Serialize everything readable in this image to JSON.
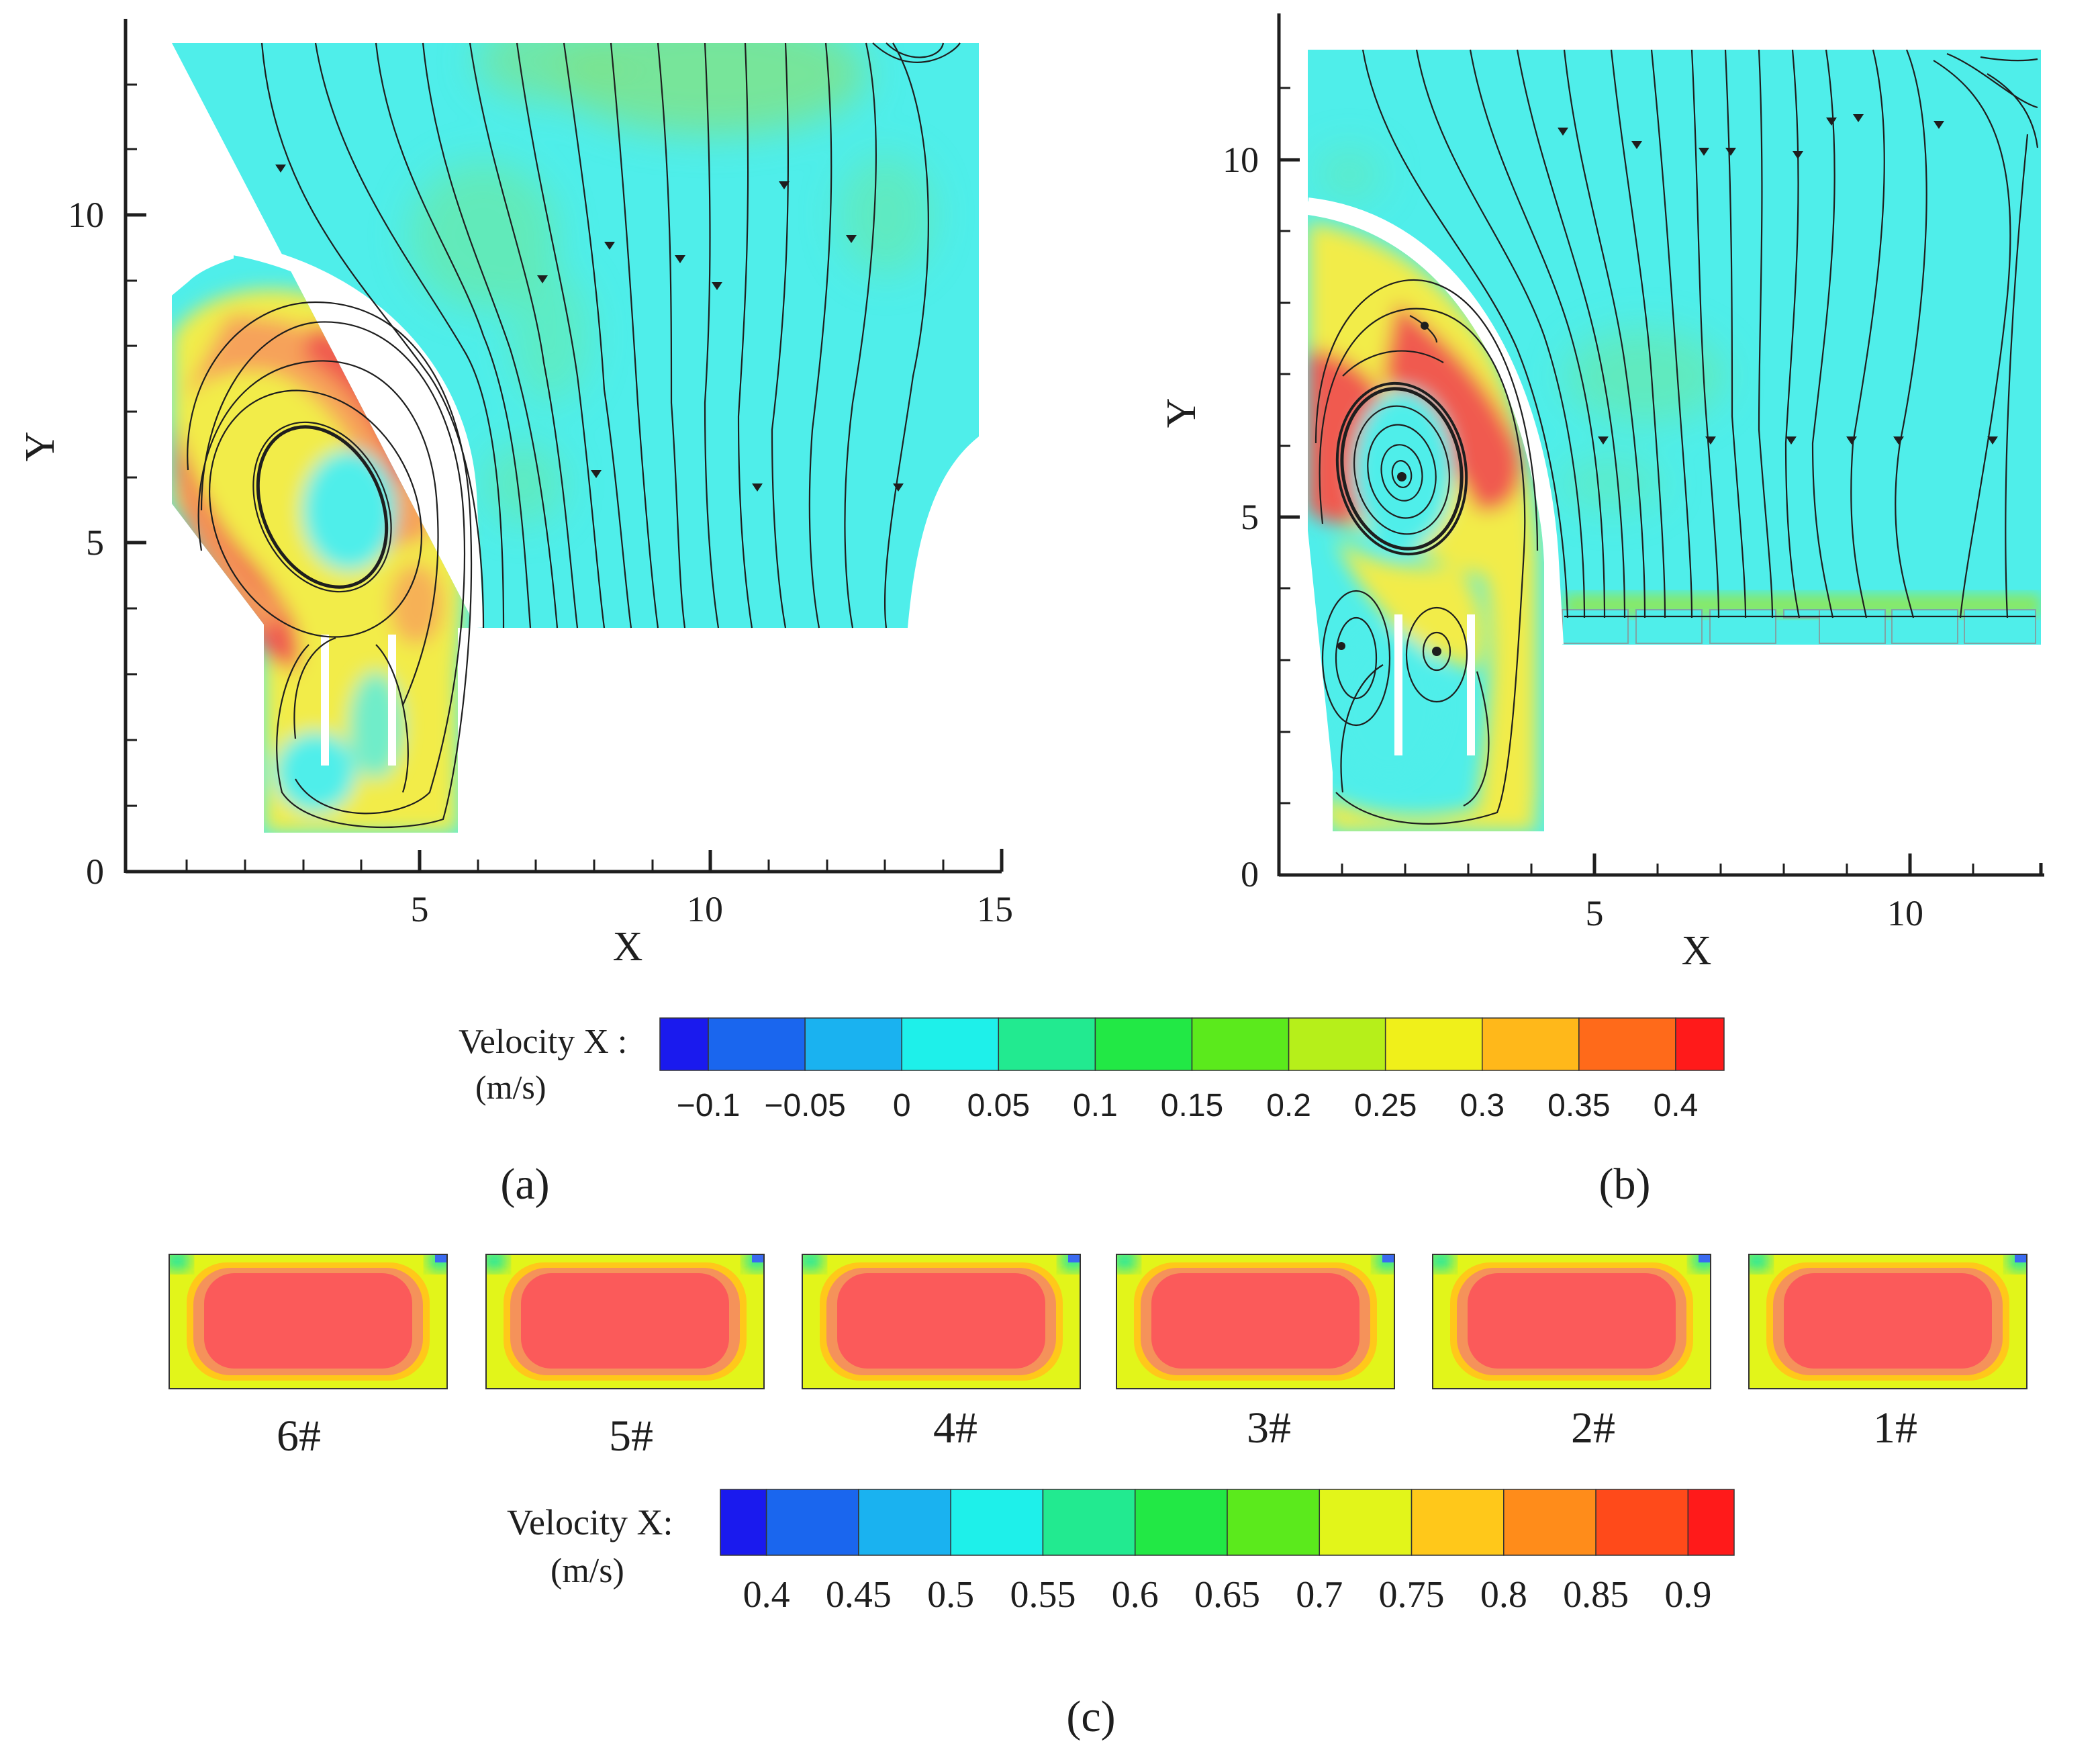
{
  "chart_data": [
    {
      "type": "heatmap",
      "panel_label": "(a)",
      "xlabel": "X",
      "ylabel": "Y",
      "xlim": [
        0,
        15
      ],
      "ylim": [
        0,
        12.5
      ],
      "xticks": [
        "5",
        "10",
        "15"
      ],
      "yticks": [
        "0",
        "5",
        "10"
      ],
      "features": "contour of Velocity X with streamlines; recirculating vortex near (3.5, 5.5); curved guide wall; two baffles in lower channel"
    },
    {
      "type": "heatmap",
      "panel_label": "(b)",
      "xlabel": "X",
      "ylabel": "Y",
      "xlim": [
        0,
        12
      ],
      "ylim": [
        0,
        12
      ],
      "xticks": [
        "5",
        "10"
      ],
      "yticks": [
        "0",
        "5",
        "10"
      ],
      "features": "contour of Velocity X with streamlines; strong vortex near (1.5, 5.5); seven outlet boxes near y = 3.5"
    },
    {
      "type": "heatmap",
      "panel_label": "(c)",
      "sections": [
        "6#",
        "5#",
        "4#",
        "3#",
        "2#",
        "1#"
      ],
      "core_velocity": [
        0.9,
        0.9,
        0.9,
        0.9,
        0.9,
        0.9
      ],
      "features": "cross-section contours of Velocity X at six outlets; red core, orange/yellow edges"
    }
  ],
  "legend_ab": {
    "title_line1": "Velocity X :",
    "title_line2": "(m/s)",
    "ticks": [
      "−0.1",
      "−0.05",
      "0",
      "0.05",
      "0.1",
      "0.15",
      "0.2",
      "0.25",
      "0.3",
      "0.35",
      "0.4"
    ],
    "colors": [
      "#1a1aee",
      "#1a66ee",
      "#1ab2f0",
      "#1ef0ea",
      "#22ea90",
      "#22e845",
      "#5bea1c",
      "#b6ef1a",
      "#f0f01a",
      "#ffb81a",
      "#ff6a1a",
      "#ff1a1a"
    ]
  },
  "legend_c": {
    "title_line1": "Velocity X:",
    "title_line2": "(m/s)",
    "ticks": [
      "0.4",
      "0.45",
      "0.5",
      "0.55",
      "0.6",
      "0.65",
      "0.7",
      "0.75",
      "0.8",
      "0.85",
      "0.9"
    ],
    "colors": [
      "#1a1aee",
      "#1a66ee",
      "#1ab2f0",
      "#1ef0ea",
      "#22ea90",
      "#22e845",
      "#5bea1c",
      "#e2f51a",
      "#ffc81a",
      "#ff8c1a",
      "#ff4a1a",
      "#ff1a1a"
    ]
  },
  "colors": {
    "field_base": "#4feeea",
    "field_green": "#62e88a",
    "field_yellow": "#f0e84a",
    "field_orange": "#f5a050",
    "field_red": "#f05a50",
    "streamline": "#1e1e1e"
  }
}
